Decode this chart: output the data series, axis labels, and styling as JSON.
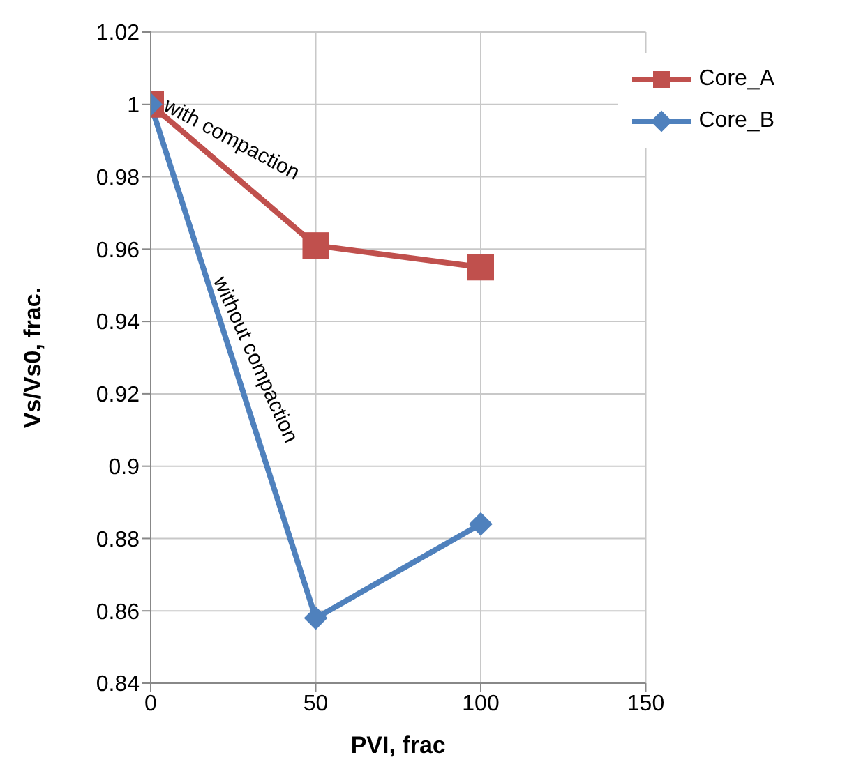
{
  "chart_data": {
    "type": "line",
    "xlabel": "PVI, frac",
    "ylabel": "Vs/Vs0, frac.",
    "x": [
      0,
      50,
      100
    ],
    "series": [
      {
        "name": "Core_A",
        "color": "#c0504d",
        "marker": "square",
        "values": [
          1,
          0.961,
          0.955
        ]
      },
      {
        "name": "Core_B",
        "color": "#4f81bd",
        "marker": "diamond",
        "values": [
          1,
          0.858,
          0.884
        ]
      }
    ],
    "xlim": [
      0,
      150
    ],
    "xticks": [
      0,
      50,
      100,
      150
    ],
    "ylim": [
      0.84,
      1.02
    ],
    "yticks": [
      0.84,
      0.86,
      0.88,
      0.9,
      0.92,
      0.94,
      0.96,
      0.98,
      1,
      1.02
    ],
    "grid": true,
    "legend": "top right",
    "annotations": [
      "with compaction",
      "without compaction"
    ]
  }
}
